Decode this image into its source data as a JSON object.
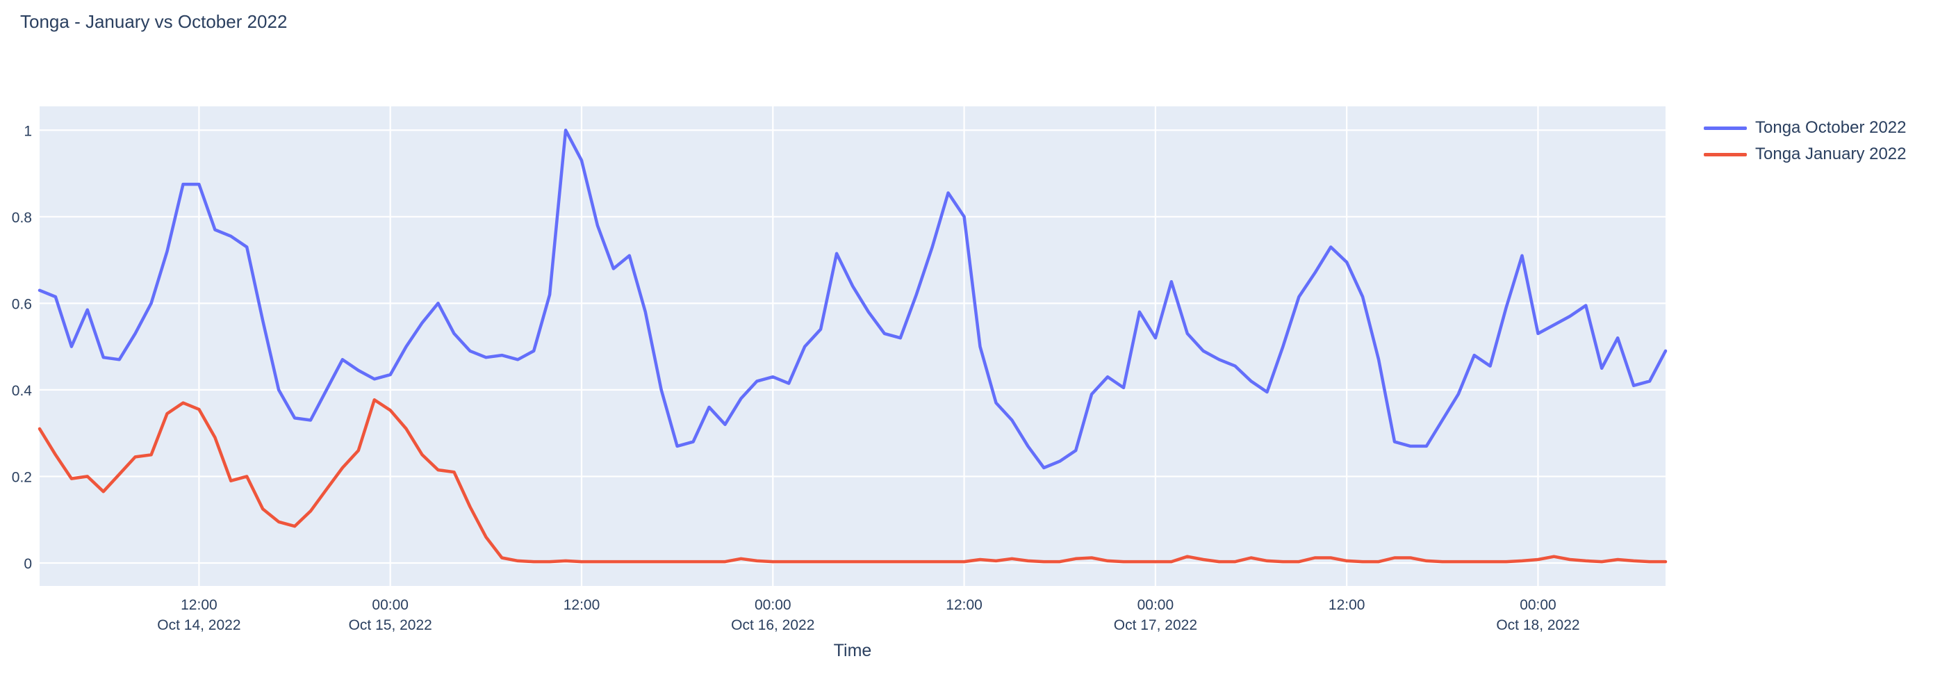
{
  "header": {
    "title": "Tonga - January vs October 2022",
    "title_color": "#2a3f5f"
  },
  "legend": {
    "items": [
      {
        "label": "Tonga October 2022",
        "color": "#636efa"
      },
      {
        "label": "Tonga January 2022",
        "color": "#ef553b"
      }
    ]
  },
  "chart_data": {
    "type": "line",
    "title": "Tonga - January vs October 2022",
    "xlabel": "Time",
    "ylabel": "",
    "x_start": "2022-10-14 02:00",
    "x_step_hours": 1,
    "n_points": 103,
    "x_end": "2022-10-18 08:00",
    "ylim": [
      -0.053,
      1.055
    ],
    "yticks": [
      "0",
      "0.2",
      "0.4",
      "0.6",
      "0.8",
      "1"
    ],
    "ytick_values": [
      0,
      0.2,
      0.4,
      0.6,
      0.8,
      1
    ],
    "xticks": [
      {
        "index": 10,
        "time": "12:00",
        "date": "Oct 14, 2022"
      },
      {
        "index": 22,
        "time": "00:00",
        "date": "Oct 15, 2022"
      },
      {
        "index": 34,
        "time": "12:00",
        "date": ""
      },
      {
        "index": 46,
        "time": "00:00",
        "date": "Oct 16, 2022"
      },
      {
        "index": 58,
        "time": "12:00",
        "date": ""
      },
      {
        "index": 70,
        "time": "00:00",
        "date": "Oct 17, 2022"
      },
      {
        "index": 82,
        "time": "12:00",
        "date": ""
      },
      {
        "index": 94,
        "time": "00:00",
        "date": "Oct 18, 2022"
      }
    ],
    "grid": true,
    "plot_background": "#e5ecf6",
    "grid_color": "#ffffff",
    "label_color": "#2a3f5f",
    "legend_position": "outside-top-right",
    "series": [
      {
        "name": "Tonga October 2022",
        "color": "#636efa",
        "values": [
          0.63,
          0.615,
          0.5,
          0.585,
          0.475,
          0.47,
          0.53,
          0.6,
          0.72,
          0.875,
          0.875,
          0.77,
          0.755,
          0.73,
          0.56,
          0.4,
          0.335,
          0.33,
          0.4,
          0.47,
          0.445,
          0.425,
          0.435,
          0.5,
          0.555,
          0.6,
          0.53,
          0.49,
          0.475,
          0.48,
          0.47,
          0.49,
          0.62,
          1.0,
          0.93,
          0.78,
          0.68,
          0.71,
          0.58,
          0.4,
          0.27,
          0.28,
          0.36,
          0.32,
          0.38,
          0.42,
          0.43,
          0.415,
          0.5,
          0.54,
          0.715,
          0.64,
          0.58,
          0.53,
          0.52,
          0.62,
          0.73,
          0.855,
          0.8,
          0.5,
          0.37,
          0.33,
          0.27,
          0.22,
          0.235,
          0.26,
          0.39,
          0.43,
          0.405,
          0.58,
          0.52,
          0.65,
          0.53,
          0.49,
          0.47,
          0.455,
          0.42,
          0.395,
          0.5,
          0.615,
          0.67,
          0.73,
          0.695,
          0.615,
          0.47,
          0.28,
          0.27,
          0.27,
          0.33,
          0.39,
          0.48,
          0.455,
          0.59,
          0.71,
          0.53,
          0.55,
          0.57,
          0.595,
          0.45,
          0.52,
          0.41,
          0.42,
          0.49
        ]
      },
      {
        "name": "Tonga January 2022",
        "color": "#ef553b",
        "values": [
          0.31,
          0.25,
          0.195,
          0.2,
          0.165,
          0.205,
          0.245,
          0.25,
          0.345,
          0.37,
          0.355,
          0.29,
          0.19,
          0.2,
          0.125,
          0.095,
          0.085,
          0.12,
          0.17,
          0.22,
          0.26,
          0.377,
          0.353,
          0.31,
          0.25,
          0.215,
          0.21,
          0.13,
          0.06,
          0.012,
          0.005,
          0.003,
          0.003,
          0.005,
          0.003,
          0.003,
          0.003,
          0.003,
          0.003,
          0.003,
          0.003,
          0.003,
          0.003,
          0.003,
          0.01,
          0.005,
          0.003,
          0.003,
          0.003,
          0.003,
          0.003,
          0.003,
          0.003,
          0.003,
          0.003,
          0.003,
          0.003,
          0.003,
          0.003,
          0.008,
          0.005,
          0.01,
          0.005,
          0.003,
          0.003,
          0.01,
          0.012,
          0.005,
          0.003,
          0.003,
          0.003,
          0.003,
          0.015,
          0.008,
          0.003,
          0.003,
          0.012,
          0.005,
          0.003,
          0.003,
          0.012,
          0.012,
          0.005,
          0.003,
          0.003,
          0.012,
          0.012,
          0.005,
          0.003,
          0.003,
          0.003,
          0.003,
          0.003,
          0.005,
          0.008,
          0.015,
          0.008,
          0.005,
          0.003,
          0.008,
          0.005,
          0.003,
          0.003
        ]
      }
    ]
  }
}
